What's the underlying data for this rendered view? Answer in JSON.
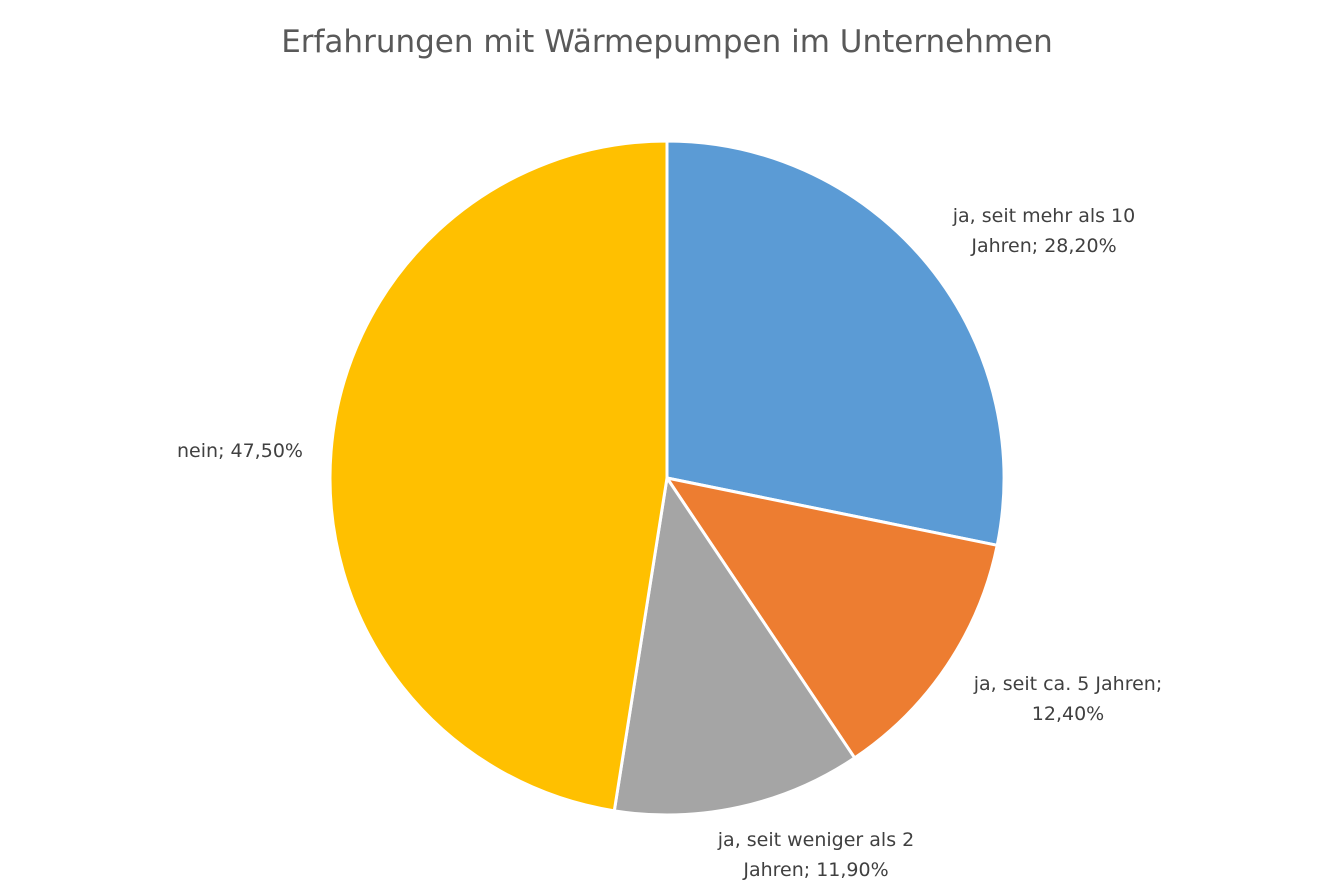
{
  "chart_data": {
    "type": "pie",
    "title": "Erfahrungen mit Wärmepumpen im Unternehmen",
    "legend": "none",
    "slices": [
      {
        "category": "ja, seit mehr als 10 Jahren",
        "value": 28.2,
        "label_lines": [
          "ja, seit mehr als 10",
          "Jahren; 28,20%"
        ],
        "color": "#5B9BD5"
      },
      {
        "category": "ja, seit ca. 5 Jahren",
        "value": 12.4,
        "label_lines": [
          "ja, seit ca. 5 Jahren;",
          "12,40%"
        ],
        "color": "#ED7D31"
      },
      {
        "category": "ja, seit weniger als 2 Jahren",
        "value": 11.9,
        "label_lines": [
          "ja, seit weniger als 2",
          "Jahren; 11,90%"
        ],
        "color": "#A5A5A5"
      },
      {
        "category": "nein",
        "value": 47.5,
        "label_lines": [
          "nein; 47,50%"
        ],
        "color": "#FFC000"
      }
    ]
  }
}
